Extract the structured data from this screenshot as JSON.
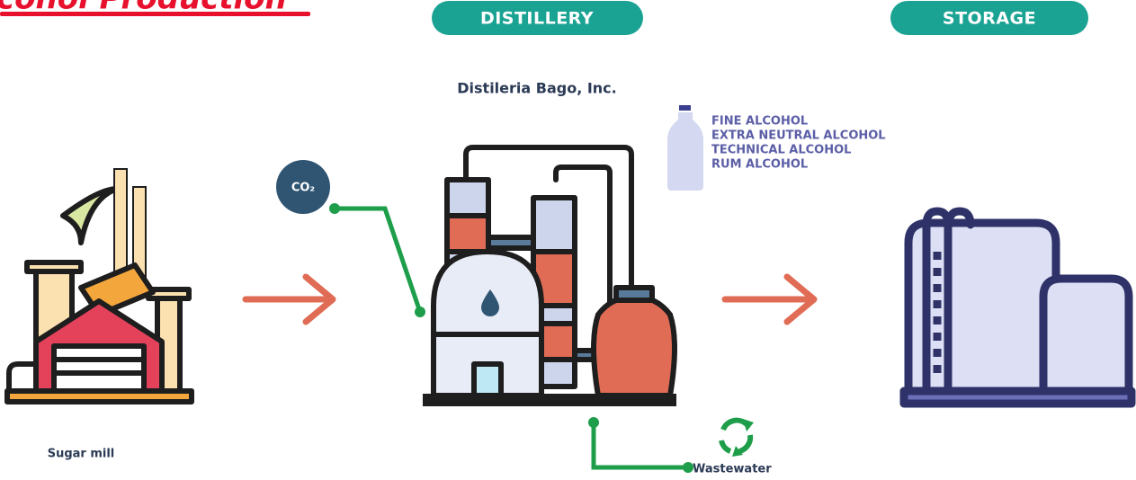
{
  "header": {
    "title": "cohol Production"
  },
  "stages": [
    {
      "label": "DISTILLERY"
    },
    {
      "label": "STORAGE"
    }
  ],
  "distillery": {
    "company": "Distileria Bago, Inc.",
    "products": [
      "FINE ALCOHOL",
      "EXTRA NEUTRAL ALCOHOL",
      "TECHNICAL ALCOHOL",
      "RUM ALCOHOL"
    ]
  },
  "co2": {
    "label": "CO₂"
  },
  "sugar_mill": {
    "label": "Sugar mill"
  },
  "wastewater": {
    "label": "Wastewater"
  }
}
